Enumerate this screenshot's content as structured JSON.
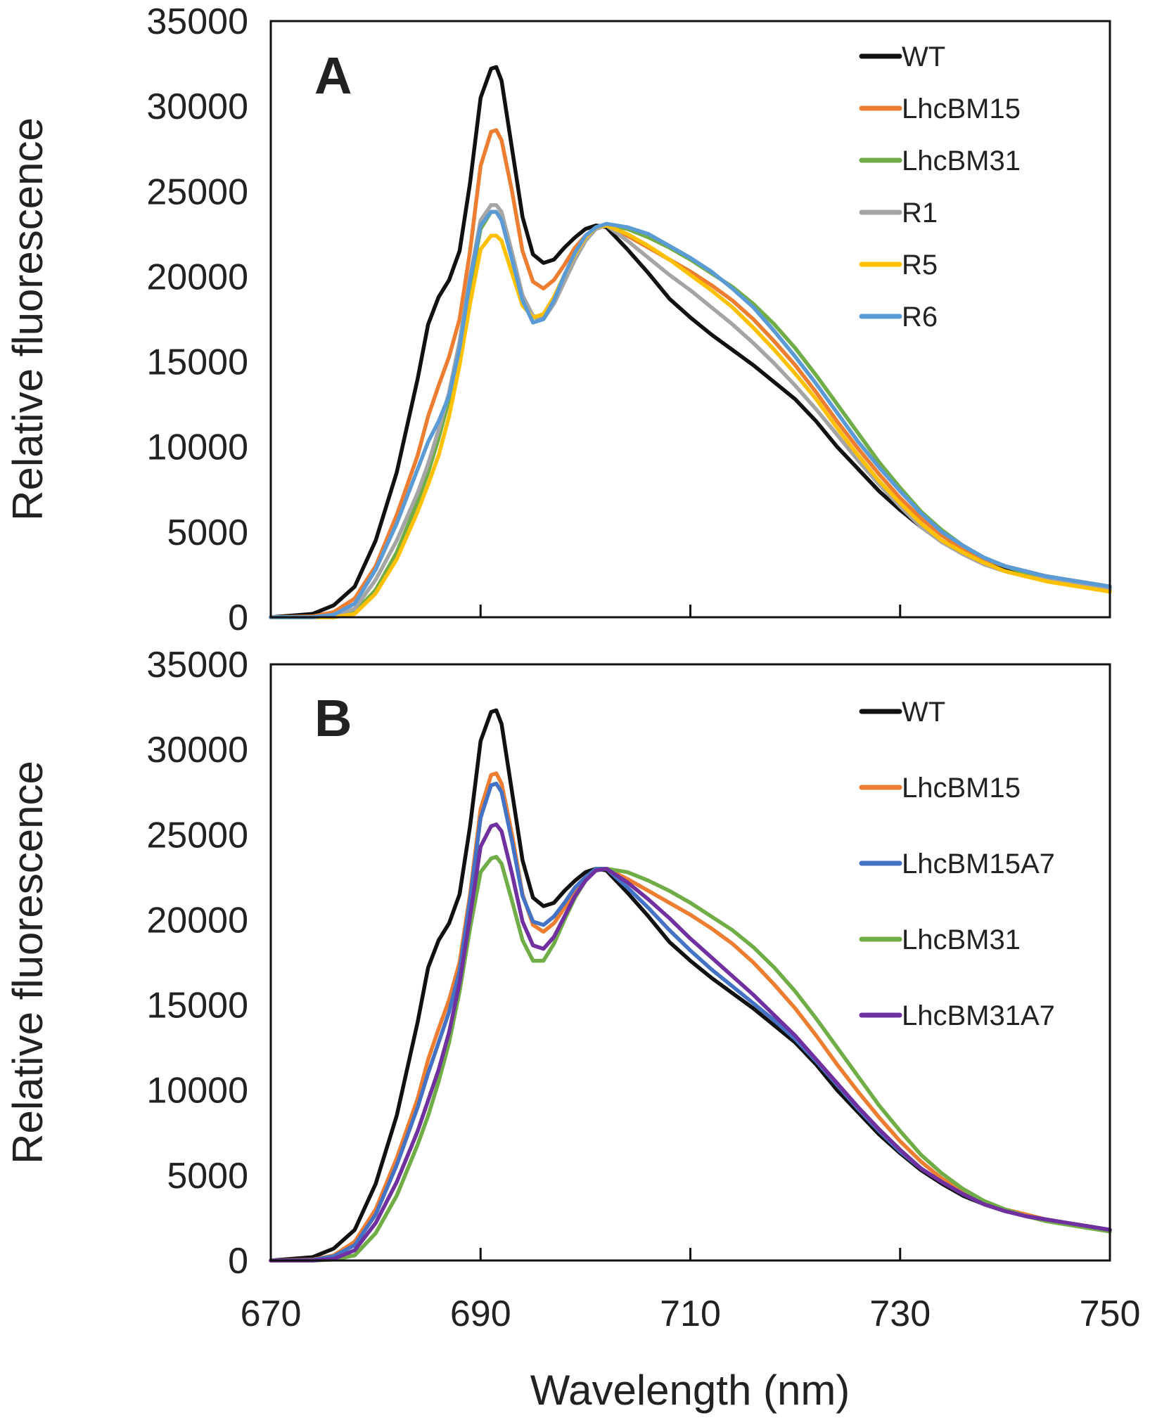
{
  "figure": {
    "xlabel": "Wavelength (nm)",
    "x_ticks": [
      "670",
      "690",
      "710",
      "730",
      "750"
    ]
  },
  "chart_data": [
    {
      "type": "line",
      "panel_label": "A",
      "xlabel": "Wavelength (nm)",
      "ylabel": "Relative fluorescence",
      "xlim": [
        670,
        750
      ],
      "ylim": [
        0,
        35000
      ],
      "x_ticks": [
        670,
        690,
        710,
        730,
        750
      ],
      "y_ticks": [
        "0",
        "5000",
        "10000",
        "15000",
        "20000",
        "25000",
        "30000",
        "35000"
      ],
      "legend_position": "top-right",
      "x": [
        670,
        674,
        676,
        678,
        680,
        682,
        684,
        685,
        686,
        687,
        688,
        689,
        690,
        691,
        691.5,
        692,
        693,
        694,
        695,
        696,
        697,
        698,
        699,
        700,
        701,
        702,
        704,
        706,
        708,
        710,
        712,
        714,
        716,
        718,
        720,
        722,
        724,
        726,
        728,
        730,
        732,
        734,
        736,
        738,
        740,
        742,
        744,
        746,
        748,
        750
      ],
      "series": [
        {
          "name": "WT",
          "color": "#111111",
          "values": [
            0,
            200,
            700,
            1800,
            4500,
            8500,
            14000,
            17200,
            18800,
            19800,
            21500,
            25500,
            30500,
            32200,
            32300,
            31500,
            27500,
            23500,
            21300,
            20800,
            21000,
            21700,
            22300,
            22800,
            23000,
            22900,
            21600,
            20200,
            18700,
            17600,
            16600,
            15700,
            14800,
            13800,
            12800,
            11500,
            10000,
            8700,
            7400,
            6300,
            5300,
            4500,
            3800,
            3300,
            2900,
            2600,
            2400,
            2200,
            2000,
            1800
          ]
        },
        {
          "name": "LhcBM15",
          "color": "#ED7D31",
          "values": [
            0,
            50,
            300,
            1100,
            3000,
            6000,
            9500,
            11800,
            13600,
            15300,
            17500,
            21500,
            26500,
            28500,
            28600,
            28000,
            25000,
            21500,
            19700,
            19300,
            19800,
            20700,
            21700,
            22400,
            22900,
            23000,
            22400,
            21700,
            21000,
            20300,
            19500,
            18600,
            17500,
            16200,
            14800,
            13200,
            11500,
            9900,
            8400,
            7000,
            5800,
            4800,
            4000,
            3400,
            3000,
            2700,
            2400,
            2200,
            2000,
            1800
          ]
        },
        {
          "name": "LhcBM31",
          "color": "#70AD47",
          "values": [
            0,
            0,
            50,
            300,
            1600,
            3800,
            6800,
            8500,
            10500,
            12800,
            15800,
            19500,
            22800,
            23800,
            23800,
            23400,
            21200,
            18800,
            17600,
            17600,
            18600,
            20000,
            21300,
            22300,
            22900,
            23000,
            22800,
            22300,
            21700,
            21000,
            20200,
            19400,
            18400,
            17200,
            15800,
            14200,
            12500,
            10800,
            9100,
            7600,
            6200,
            5100,
            4200,
            3500,
            3000,
            2600,
            2300,
            2100,
            1900,
            1700
          ]
        },
        {
          "name": "R1",
          "color": "#A5A5A5",
          "values": [
            0,
            0,
            80,
            500,
            2200,
            4500,
            7300,
            9000,
            11000,
            13200,
            16200,
            20000,
            23300,
            24200,
            24200,
            23800,
            21400,
            18900,
            17700,
            17500,
            18400,
            19700,
            21000,
            22100,
            22800,
            23000,
            22100,
            21100,
            20100,
            19200,
            18200,
            17200,
            16100,
            14900,
            13600,
            12200,
            10700,
            9200,
            7800,
            6500,
            5300,
            4400,
            3700,
            3100,
            2700,
            2400,
            2200,
            2000,
            1800,
            1600
          ]
        },
        {
          "name": "R5",
          "color": "#FFC000",
          "values": [
            0,
            0,
            0,
            200,
            1400,
            3400,
            6200,
            7800,
            9500,
            11800,
            14800,
            18400,
            21600,
            22400,
            22400,
            22100,
            20200,
            18300,
            17600,
            17800,
            18800,
            20100,
            21300,
            22300,
            22900,
            23000,
            22500,
            21800,
            21000,
            20100,
            19200,
            18200,
            17000,
            15700,
            14300,
            12800,
            11100,
            9500,
            8000,
            6700,
            5500,
            4500,
            3800,
            3200,
            2700,
            2400,
            2100,
            1900,
            1700,
            1500
          ]
        },
        {
          "name": "R6",
          "color": "#5B9BD5",
          "values": [
            0,
            0,
            150,
            800,
            2800,
            5500,
            8700,
            10300,
            11500,
            13000,
            15800,
            19800,
            23000,
            23800,
            23800,
            23300,
            21000,
            18600,
            17300,
            17500,
            18600,
            20100,
            21400,
            22400,
            22900,
            23100,
            22900,
            22500,
            21800,
            21100,
            20300,
            19300,
            18200,
            16800,
            15300,
            13700,
            12000,
            10300,
            8800,
            7400,
            6100,
            5000,
            4200,
            3500,
            3000,
            2700,
            2400,
            2200,
            2000,
            1800
          ]
        }
      ]
    },
    {
      "type": "line",
      "panel_label": "B",
      "xlabel": "Wavelength (nm)",
      "ylabel": "Relative fluorescence",
      "xlim": [
        670,
        750
      ],
      "ylim": [
        0,
        35000
      ],
      "x_ticks": [
        670,
        690,
        710,
        730,
        750
      ],
      "y_ticks": [
        "0",
        "5000",
        "10000",
        "15000",
        "20000",
        "25000",
        "30000",
        "35000"
      ],
      "legend_position": "top-right",
      "x": [
        670,
        674,
        676,
        678,
        680,
        682,
        684,
        685,
        686,
        687,
        688,
        689,
        690,
        691,
        691.5,
        692,
        693,
        694,
        695,
        696,
        697,
        698,
        699,
        700,
        701,
        702,
        704,
        706,
        708,
        710,
        712,
        714,
        716,
        718,
        720,
        722,
        724,
        726,
        728,
        730,
        732,
        734,
        736,
        738,
        740,
        742,
        744,
        746,
        748,
        750
      ],
      "series": [
        {
          "name": "WT",
          "color": "#111111",
          "values": [
            0,
            200,
            700,
            1800,
            4500,
            8500,
            14000,
            17200,
            18800,
            19800,
            21500,
            25500,
            30500,
            32200,
            32300,
            31500,
            27500,
            23500,
            21300,
            20800,
            21000,
            21700,
            22300,
            22800,
            23000,
            22900,
            21600,
            20200,
            18700,
            17600,
            16600,
            15700,
            14800,
            13800,
            12800,
            11500,
            10000,
            8700,
            7400,
            6300,
            5300,
            4500,
            3800,
            3300,
            2900,
            2600,
            2400,
            2200,
            2000,
            1800
          ]
        },
        {
          "name": "LhcBM15",
          "color": "#ED7D31",
          "values": [
            0,
            50,
            300,
            1100,
            3000,
            6000,
            9500,
            11800,
            13600,
            15300,
            17500,
            21500,
            26500,
            28500,
            28600,
            28000,
            25000,
            21500,
            19700,
            19300,
            19800,
            20700,
            21700,
            22400,
            22900,
            23000,
            22400,
            21700,
            21000,
            20300,
            19500,
            18600,
            17500,
            16200,
            14800,
            13200,
            11500,
            9900,
            8400,
            7000,
            5800,
            4800,
            4000,
            3400,
            3000,
            2700,
            2400,
            2200,
            2000,
            1800
          ]
        },
        {
          "name": "LhcBM15A7",
          "color": "#4472C4",
          "values": [
            0,
            30,
            250,
            900,
            2700,
            5600,
            9000,
            11000,
            12800,
            14600,
            17000,
            21200,
            26000,
            27900,
            28000,
            27500,
            24600,
            21400,
            19900,
            19700,
            20200,
            21000,
            21900,
            22500,
            23000,
            23000,
            21900,
            20700,
            19400,
            18200,
            17100,
            16100,
            15100,
            14100,
            13000,
            11700,
            10300,
            8900,
            7600,
            6400,
            5400,
            4600,
            3900,
            3300,
            2900,
            2600,
            2400,
            2200,
            2000,
            1800
          ]
        },
        {
          "name": "LhcBM31",
          "color": "#70AD47",
          "values": [
            0,
            0,
            50,
            300,
            1600,
            3800,
            6800,
            8500,
            10500,
            12800,
            15800,
            19500,
            22800,
            23600,
            23700,
            23300,
            21100,
            18800,
            17600,
            17600,
            18600,
            20000,
            21300,
            22300,
            22900,
            23000,
            22800,
            22300,
            21700,
            21000,
            20200,
            19400,
            18400,
            17200,
            15800,
            14200,
            12500,
            10800,
            9100,
            7600,
            6200,
            5100,
            4200,
            3500,
            3000,
            2600,
            2300,
            2100,
            1900,
            1700
          ]
        },
        {
          "name": "LhcBM31A7",
          "color": "#7030A0",
          "values": [
            0,
            0,
            100,
            600,
            2200,
            4600,
            7600,
            9400,
            11200,
            13400,
            16300,
            20200,
            24300,
            25500,
            25600,
            25200,
            22700,
            19900,
            18500,
            18300,
            19000,
            20200,
            21400,
            22300,
            22900,
            23000,
            22200,
            21200,
            20100,
            18900,
            17800,
            16700,
            15600,
            14400,
            13200,
            11800,
            10400,
            9000,
            7700,
            6500,
            5400,
            4600,
            3900,
            3300,
            2900,
            2600,
            2400,
            2200,
            2000,
            1800
          ]
        }
      ]
    }
  ]
}
